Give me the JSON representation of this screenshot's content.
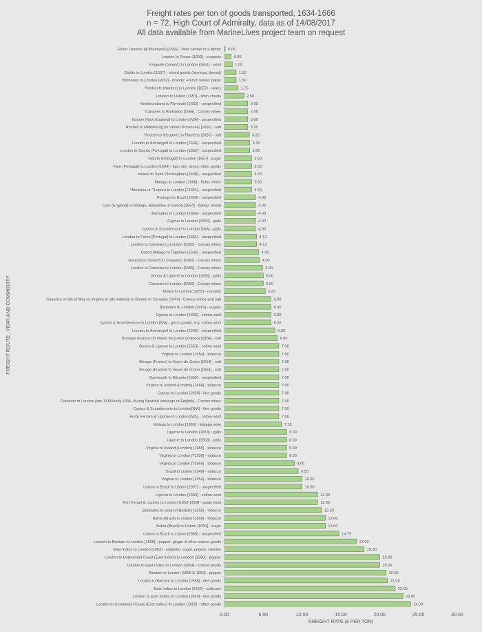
{
  "colors": {
    "background": "#e8e8e8",
    "bar_fill": "#a9d18e",
    "bar_stroke": "#548235",
    "text": "#555555",
    "grid": "#d0d0d0"
  },
  "chart_data": {
    "type": "bar",
    "orientation": "horizontal",
    "title": "Freight rates per ton of goods transported, 1634-1666",
    "subtitle": "n = 72, High Court of Admiralty, data as of 14/08/2017",
    "subtitle2": "All data available from MarineLives project team on request",
    "xlabel": "FREIGHT RATE (£ PER TON)",
    "ylabel": "FREIGHT ROUTE , YEAR AND COMMODITY",
    "xlim": [
      0,
      30
    ],
    "xticks": [
      "0.00",
      "5.00",
      "10.00",
      "15.00",
      "20.00",
      "25.00",
      "30.00"
    ],
    "grid": false,
    "categories": [
      "River Thames (at Blackwall) [1656] - beer carried in a lighter",
      "London to Rouen [1653] - copperis",
      "Kinguale (Ireland) to London [1651] - wool",
      "Dublin to London [1657] - mixed goods (herrings; thread)",
      "Bordeaux to London [1652] - brandy; French wines; paper",
      "Pembeefe (Nantes) to London [1657] - wines",
      "London to Lisbon [1657] - linen chests",
      "Newfoundland to Plymouth [1653] - unspecified",
      "Canaries to Barbados [1656] - Canary wines",
      "Boston [New England] to London [N/A] - unspecified",
      "Rochell to Middleburg (in United Provinces) [1656] - salt",
      "Rochell to Nieuport ( in Flanders [1656] - salt",
      "London to Archangell to London [1666] - unspecified",
      "London to Oporto (Portugal) to London [1652] - unspecified",
      "Oporto (Portugal) to London [1657] - sugar",
      "Faro (Portugal) to London [1634] - figs; oils; wines; other goods",
      "Ireland to Saint Christophers [1638] - unspecified",
      "Malaga to London [1650] - fruits; wines",
      "?Messina or ?Lepora to London [?1651] - unspecified",
      "Portugal to Brazil [1650] - unspecified",
      "Lynn (England) to Malaga, Marseilles or Genoa [1654] - barley; wheat",
      "Barbados to London [1656] - unspecified",
      "Cyprus to London [1656] - galls",
      "Cyprus & Scanderoone to London [N/A] - galls",
      "London to Faroe [Portugal] to London [1651] - unspecified",
      "London to Canaries to London [1650] - Canary wines",
      "Grand Malaga to Topsham [1635] - unspecified",
      "Garachico (Teneriff in Canaries) [1665] - Canary wines",
      "London to Canaries to London [1655] - Canary wines",
      "Genoa & Ligorne to London [1655] - galls",
      "Canaries to London [1655] - Canary wines",
      "Morea to London [1655] - currants",
      "Canaries to Isle of May to Virginia or alternatively to Boston to Canaries [1644] - Canary wines and salt",
      "Barbados to London [1653] - sugars",
      "Cyprus to London [1656] - cotton wool",
      "Cyprus & Scanderoone to London [N/A] - gross goods, e.g. cotton wool",
      "London to Archangell to London [1666] - unspecified",
      "Brouaye (France) to Haver de Grace (France) [1654] - salt",
      "Genoa & Ligorne to London [1653] - cotton wool",
      "Virginia to London [1654] - tobacco",
      "Bruage (France) to Haver de Grace [1654] - salt",
      "Bruage (France) to Haver de Grace [1654] - salt",
      "Dartmouth to Alicante [1655] - unspecified",
      "Virginia to Ireland (London) [1666] - tobacco",
      "Cyprus to London [1656] - fine goods",
      "Canaries to London [late 1655/early 1656, during Spanish embargo of English] - Canary wines",
      "Cyprus & Scanderoone to London[N/A] - fine goods",
      "Porto Ferrara & Ligorne to London [N/A] - cotton wool",
      "Malaga to London [1666] - Malaga wine",
      "Ligorne to London [1653] - galls",
      "Ligorne to London [1653] - galls",
      "Virginia to Ireland (London) [1655] - tobacco",
      "Virginia to London [?1656] - tobacco",
      "Virginia to London [?1656] - tobacco",
      "Brazil to Lisbon [1649] - tobacco",
      "Virginia to London [1654] - tobacco",
      "Lisbon to Brazil to Lisbon [1657] - unspecified",
      "Ligorne to London [1653] - cotton wool",
      "Port Ferael & Ligorne to London [1653-1654] - goats wool",
      "Barbados to coast of Barbary [1656] - tobacco",
      "Bahia (Brasil) to Lisbon [1650] - tobacco",
      "Bahia (Brasil) to Lisbon [1650] - sugar",
      "Lisbon to Brazil to Lisbon [1650] - unspecified",
      "London to Bantam to London [1658] - pepper, ginger & other coarse goods",
      "East Indies to London [1662] - saltpeter, sugar, pepper, cowries",
      "London to Cormandel Coast (East Indies) to London [1650] - pepper",
      "London to East Indies to London [1654] - coarse goods",
      "Bantam to London [1658 & 1659] - pepper",
      "London to Bantam to London [1658] - fine goods",
      "East Indies to London [1662] - callicoes",
      "London to East Indies to London [1654] - fine goods",
      "London to Cormandel Coast (East Indies) to London [1650] - other goods"
    ],
    "values": [
      0.05,
      0.86,
      1.0,
      1.5,
      1.5,
      1.75,
      2.5,
      3.0,
      3.0,
      3.0,
      3.0,
      3.2,
      3.25,
      3.25,
      3.5,
      3.5,
      3.5,
      3.5,
      3.5,
      4.0,
      4.0,
      4.0,
      4.0,
      4.0,
      4.13,
      4.13,
      4.4,
      4.5,
      4.9,
      5.0,
      5.0,
      5.25,
      6.0,
      6.0,
      6.0,
      6.0,
      6.5,
      6.8,
      7.0,
      7.0,
      7.0,
      7.0,
      7.0,
      7.0,
      7.0,
      7.0,
      7.0,
      7.0,
      7.35,
      8.0,
      8.0,
      8.0,
      8.0,
      9.0,
      9.5,
      10.0,
      10.0,
      12.0,
      12.0,
      12.5,
      13.0,
      13.0,
      14.75,
      17.0,
      18.0,
      20.0,
      20.0,
      20.83,
      21.0,
      22.0,
      23.0,
      24.0
    ],
    "value_labels": [
      "0.05",
      "0.86",
      "1.00",
      "1.50",
      "1.50",
      "1.75",
      "2.50",
      "3.00",
      "3.00",
      "3.00",
      "3.00",
      "3.20",
      "3.25",
      "3.25",
      "3.50",
      "3.50",
      "3.50",
      "3.50",
      "3.50",
      "4.00",
      "4.00",
      "4.00",
      "4.00",
      "4.00",
      "4.13",
      "4.13",
      "4.40",
      "4.50",
      "4.90",
      "5.00",
      "5.00",
      "5.25",
      "6.00",
      "6.00",
      "6.00",
      "6.00",
      "6.50",
      "6.80",
      "7.00",
      "7.00",
      "7.00",
      "7.00",
      "7.00",
      "7.00",
      "7.00",
      "7.00",
      "7.00",
      "7.00",
      "7.35",
      "8.00",
      "8.00",
      "8.00",
      "8.00",
      "9.00",
      "9.50",
      "10.00",
      "10.00",
      "12.00",
      "12.00",
      "12.50",
      "13.00",
      "13.00",
      "14.75",
      "17.00",
      "18.00",
      "20.00",
      "20.00",
      "20.83",
      "21.00",
      "22.00",
      "23.00",
      "24.00"
    ]
  }
}
